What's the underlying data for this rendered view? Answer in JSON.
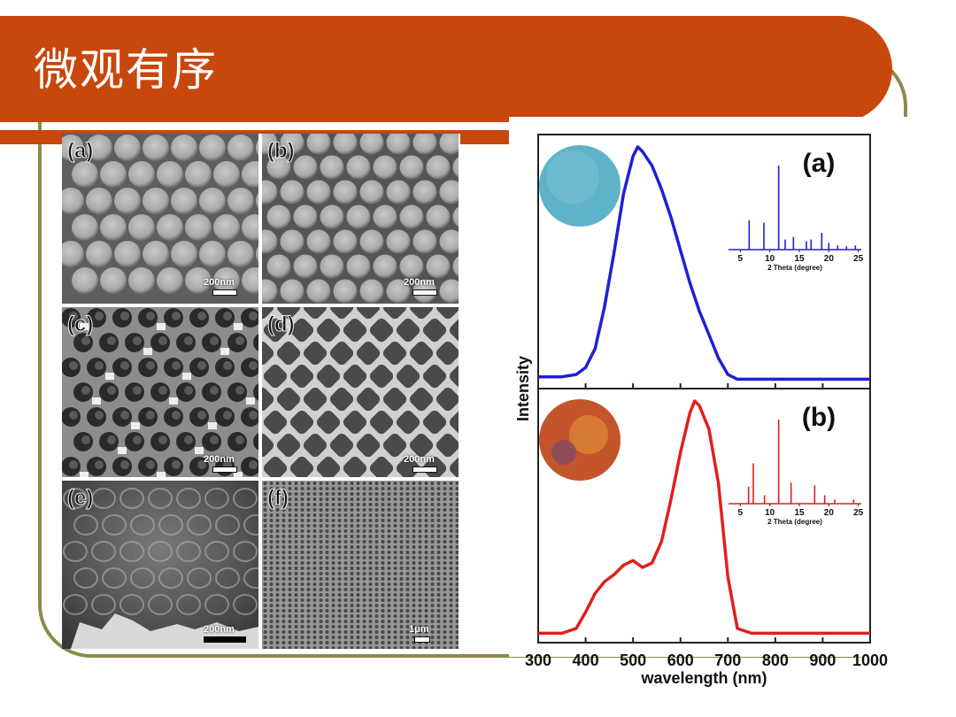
{
  "slide": {
    "title": "微观有序"
  },
  "sem": {
    "panels": [
      {
        "label": "(a)",
        "scale": "200nm"
      },
      {
        "label": "(b)",
        "scale": "200nm"
      },
      {
        "label": "(c)",
        "scale": "200nm"
      },
      {
        "label": "(d)",
        "scale": "200nm"
      },
      {
        "label": "(e)",
        "scale": "200nm"
      },
      {
        "label": "(f)",
        "scale": "1μm"
      }
    ]
  },
  "colors": {
    "title_bar": "#c8470c",
    "frame": "#8a8a4e",
    "curve_a": "#1f1fd6",
    "curve_b": "#e0201c"
  },
  "chart_data": {
    "type": "line",
    "xlabel": "wavelength (nm)",
    "ylabel": "Intensity",
    "xlim": [
      300,
      1000
    ],
    "x_ticks": [
      300,
      400,
      500,
      600,
      700,
      800,
      900,
      1000
    ],
    "panels": [
      {
        "label": "(a)",
        "color": "#1f1fd6",
        "x": [
          300,
          350,
          380,
          400,
          420,
          440,
          460,
          480,
          500,
          510,
          520,
          540,
          560,
          580,
          600,
          620,
          640,
          660,
          680,
          700,
          720,
          750,
          800,
          850,
          900,
          950,
          1000
        ],
        "y": [
          0.02,
          0.02,
          0.03,
          0.06,
          0.14,
          0.32,
          0.55,
          0.8,
          0.96,
          1.0,
          0.98,
          0.92,
          0.82,
          0.7,
          0.56,
          0.42,
          0.3,
          0.2,
          0.1,
          0.03,
          0.01,
          0.01,
          0.01,
          0.01,
          0.01,
          0.01,
          0.01
        ],
        "inset": {
          "xlabel": "2 Theta (degree)",
          "x_ticks": [
            5,
            10,
            15,
            20,
            25
          ],
          "peaks": [
            [
              6.5,
              0.35
            ],
            [
              9.0,
              0.32
            ],
            [
              11.5,
              1.0
            ],
            [
              12.6,
              0.12
            ],
            [
              14.0,
              0.15
            ],
            [
              16.2,
              0.1
            ],
            [
              17.0,
              0.12
            ],
            [
              18.8,
              0.2
            ],
            [
              20.0,
              0.08
            ],
            [
              21.5,
              0.05
            ],
            [
              23.0,
              0.04
            ],
            [
              24.5,
              0.05
            ]
          ]
        }
      },
      {
        "label": "(b)",
        "color": "#e0201c",
        "x": [
          300,
          350,
          380,
          400,
          420,
          440,
          460,
          480,
          500,
          520,
          540,
          560,
          580,
          600,
          620,
          630,
          640,
          660,
          680,
          700,
          720,
          750,
          800,
          850,
          900,
          950,
          1000
        ],
        "y": [
          0.01,
          0.01,
          0.03,
          0.1,
          0.18,
          0.23,
          0.26,
          0.3,
          0.32,
          0.29,
          0.31,
          0.4,
          0.58,
          0.78,
          0.95,
          1.0,
          0.98,
          0.88,
          0.65,
          0.25,
          0.03,
          0.01,
          0.01,
          0.01,
          0.01,
          0.01,
          0.01
        ],
        "inset": {
          "xlabel": "2 Theta (degree)",
          "x_ticks": [
            5,
            10,
            15,
            20,
            25
          ],
          "peaks": [
            [
              6.4,
              0.2
            ],
            [
              7.2,
              0.48
            ],
            [
              9.1,
              0.1
            ],
            [
              11.5,
              1.0
            ],
            [
              13.6,
              0.25
            ],
            [
              17.6,
              0.22
            ],
            [
              19.3,
              0.1
            ],
            [
              21.0,
              0.05
            ],
            [
              24.2,
              0.05
            ]
          ]
        }
      }
    ]
  }
}
